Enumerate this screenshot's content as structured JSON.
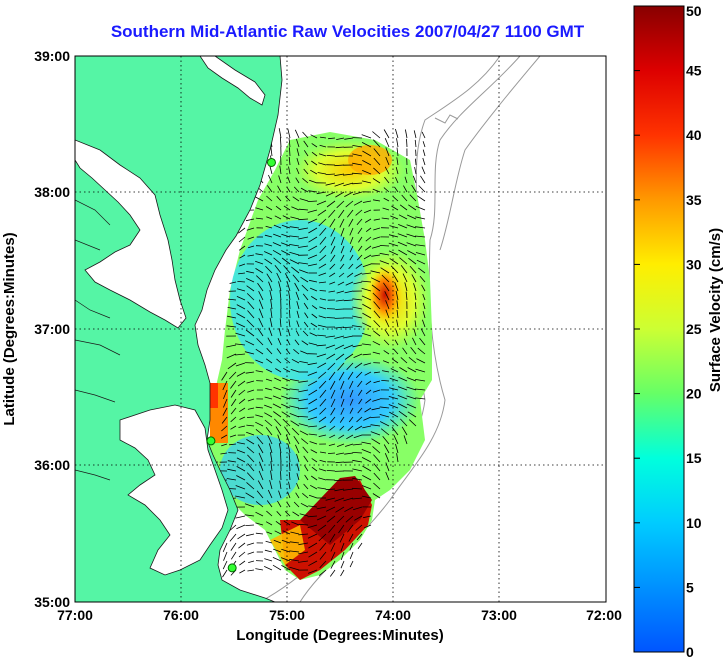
{
  "map": {
    "title": "Southern Mid-Atlantic Raw Velocities 2007/04/27 1100 GMT",
    "xlabel": "Longitude (Degrees:Minutes)",
    "ylabel": "Latitude (Degrees:Minutes)",
    "x_ticks": [
      "77:00",
      "76:00",
      "75:00",
      "74:00",
      "73:00",
      "72:00"
    ],
    "y_ticks": [
      "39:00",
      "38:00",
      "37:00",
      "36:00",
      "35:00"
    ],
    "lon_range": [
      -77,
      -72
    ],
    "lat_range": [
      35,
      39
    ],
    "land_color": "#55f5a5",
    "stations": [
      {
        "lon": -75.15,
        "lat": 38.22
      },
      {
        "lon": -75.72,
        "lat": 36.18
      },
      {
        "lon": -75.52,
        "lat": 35.25
      }
    ]
  },
  "colorbar": {
    "label": "Surface Velocity (cm/s)",
    "min": 0,
    "max": 50,
    "ticks": [
      "0",
      "5",
      "10",
      "15",
      "20",
      "25",
      "30",
      "35",
      "40",
      "45",
      "50"
    ]
  }
}
